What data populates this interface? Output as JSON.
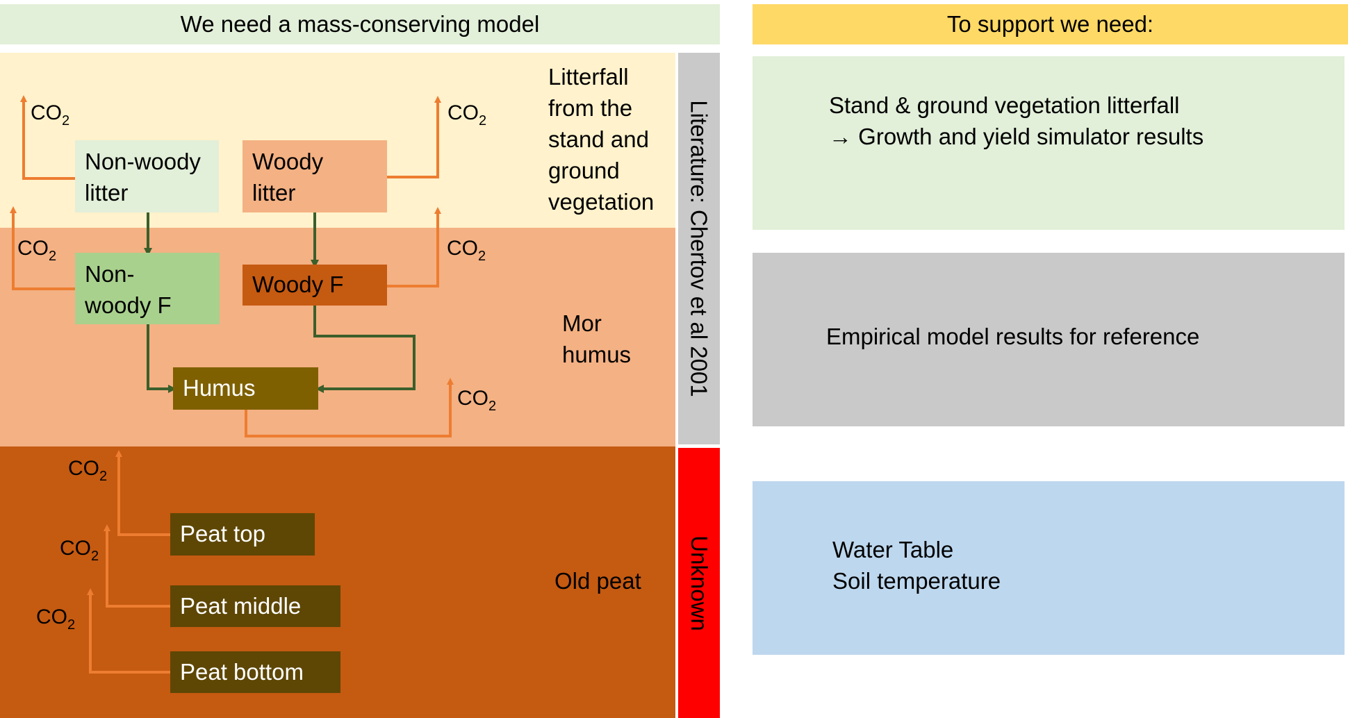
{
  "headers": {
    "left": "We need a mass-conserving model",
    "right": "To support we need:"
  },
  "bands": {
    "litterfall": [
      "Litterfall",
      "from the",
      "stand and",
      "ground",
      "vegetation"
    ],
    "mor_humus": [
      "Mor",
      "humus"
    ],
    "old_peat": "Old peat"
  },
  "side_labels": {
    "literature": "Literature: Chertov et al 2001",
    "unknown": "Unknown"
  },
  "boxes": {
    "non_woody_litter": [
      "Non-woody",
      "litter"
    ],
    "woody_litter": [
      "Woody",
      "litter"
    ],
    "non_woody_f": [
      "Non-",
      "woody F"
    ],
    "woody_f": "Woody F",
    "humus": "Humus",
    "peat_top": "Peat top",
    "peat_middle": "Peat middle",
    "peat_bottom": "Peat bottom"
  },
  "co2": {
    "base": "CO",
    "sub": "2"
  },
  "panels": {
    "litterfall": [
      "Stand & ground vegetation litterfall",
      "→ Growth and yield simulator results"
    ],
    "empirical": "Empirical model results for reference",
    "environment": [
      "Water Table",
      "Soil temperature"
    ]
  },
  "colors": {
    "header_left": "#e2efd9",
    "header_right": "#ffd966",
    "litter_band": "#fff2cc",
    "humus_band": "#f4b183",
    "peat_band": "#c55a11",
    "literature_bar": "#c9c9c9",
    "unknown_bar": "#ff0000",
    "non_woody_litter": "#e2efd9",
    "woody_litter": "#f4b183",
    "non_woody_f": "#a9d18e",
    "woody_f": "#c55a11",
    "humus": "#7f6000",
    "peat": "#5e4705",
    "green_arrow": "#3a5f2b",
    "orange_arrow": "#ed7d31",
    "panel_green": "#e2efd9",
    "panel_grey": "#c9c9c9",
    "panel_blue": "#bdd7ee"
  }
}
